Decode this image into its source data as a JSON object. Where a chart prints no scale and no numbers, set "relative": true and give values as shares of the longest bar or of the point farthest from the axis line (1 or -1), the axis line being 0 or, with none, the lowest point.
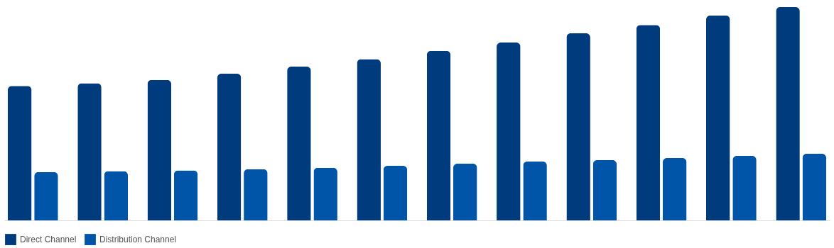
{
  "chart_data": {
    "type": "bar",
    "relative": true,
    "legend": "bottom",
    "categories": [
      null,
      null,
      null,
      null,
      null,
      null,
      null,
      null,
      null,
      null,
      null,
      null
    ],
    "series": [
      {
        "name": "Direct Channel",
        "color": "#003c7d",
        "values": [
          0.63,
          0.643,
          0.659,
          0.688,
          0.721,
          0.756,
          0.795,
          0.834,
          0.877,
          0.916,
          0.961,
          1
        ]
      },
      {
        "name": "Distribution Channel",
        "color": "#0055a8",
        "values": [
          0.227,
          0.231,
          0.234,
          0.24,
          0.247,
          0.256,
          0.266,
          0.276,
          0.282,
          0.292,
          0.302,
          0.312
        ]
      }
    ]
  }
}
